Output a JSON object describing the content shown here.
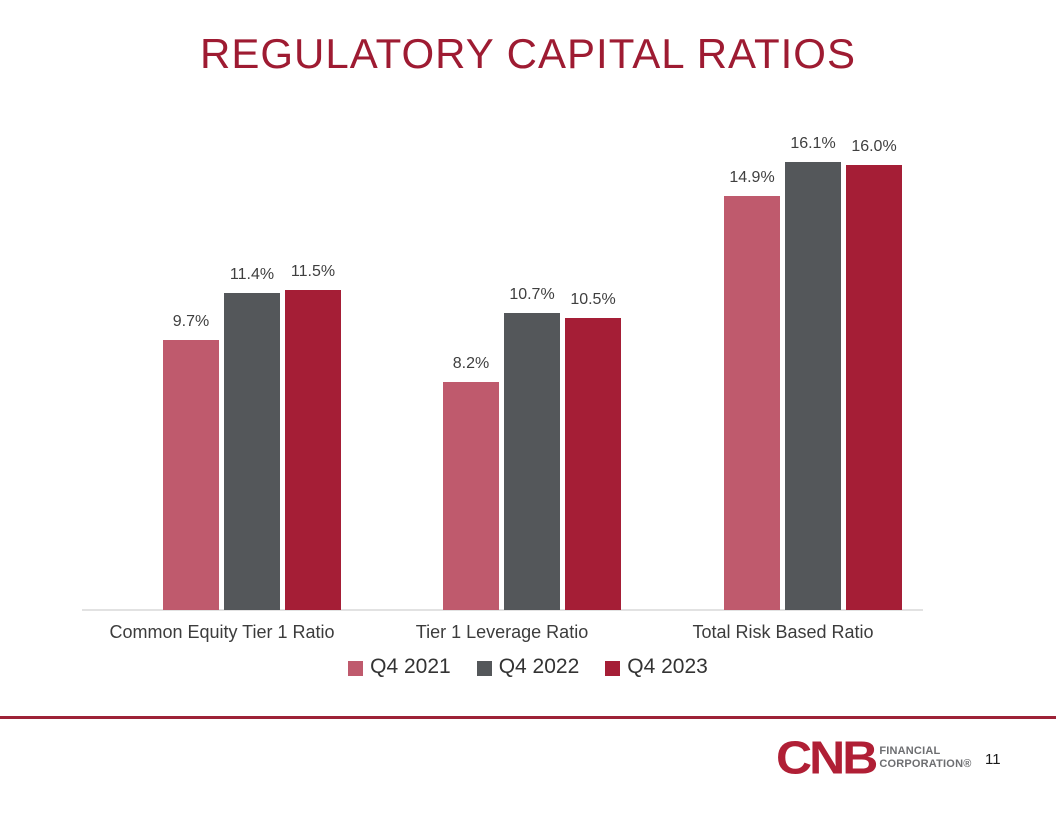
{
  "slide": {
    "title": "REGULATORY CAPITAL RATIOS",
    "page_number": "11",
    "title_color": "#9e1b32",
    "footer_line_color": "#9d2237",
    "background_color": "#ffffff"
  },
  "logo": {
    "brand": "CNB",
    "line1": "FINANCIAL",
    "line2": "CORPORATION®",
    "brand_color": "#b01f35",
    "text_color": "#6d6e71"
  },
  "chart_data": {
    "type": "bar",
    "title": "",
    "xlabel": "",
    "ylabel": "",
    "categories": [
      "Common Equity Tier 1 Ratio",
      "Tier 1 Leverage Ratio",
      "Total Risk Based Ratio"
    ],
    "series": [
      {
        "name": "Q4 2021",
        "color": "#bf5a6d",
        "values": [
          9.7,
          8.2,
          14.9
        ]
      },
      {
        "name": "Q4 2022",
        "color": "#54575a",
        "values": [
          11.4,
          10.7,
          16.1
        ]
      },
      {
        "name": "Q4 2023",
        "color": "#a51e36",
        "values": [
          11.5,
          10.5,
          16.0
        ]
      }
    ],
    "data_labels_shown": true,
    "data_label_suffix": "%",
    "data_label_decimals": 1,
    "ylim": [
      0,
      18.4
    ],
    "grid": false,
    "y_axis_ticks_shown": false,
    "legend_position": "bottom",
    "axis_line_color": "#e2e2e2",
    "label_color": "#3f3f3f"
  }
}
